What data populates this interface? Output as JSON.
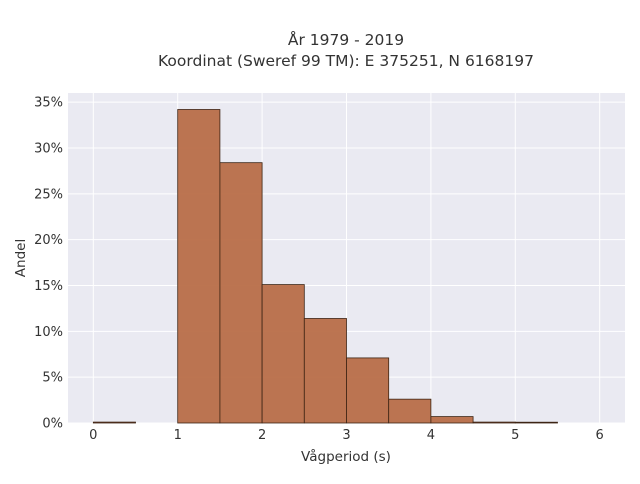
{
  "chart_data": {
    "type": "bar",
    "title": "År 1979 - 2019",
    "subtitle": "Koordinat (Sweref 99 TM): E 375251, N 6168197",
    "xlabel": "Vågperiod (s)",
    "ylabel": "Andel",
    "xlim": [
      -0.3,
      6.3
    ],
    "ylim": [
      0,
      36
    ],
    "x_ticks": [
      0,
      1,
      2,
      3,
      4,
      5,
      6
    ],
    "x_tick_labels": [
      "0",
      "1",
      "2",
      "3",
      "4",
      "5",
      "6"
    ],
    "y_ticks": [
      0,
      5,
      10,
      15,
      20,
      25,
      30,
      35
    ],
    "y_tick_labels": [
      "0%",
      "5%",
      "10%",
      "15%",
      "20%",
      "25%",
      "30%",
      "35%"
    ],
    "grid": true,
    "bar_color": "#b86e48",
    "bar_edge_color": "#3d2414",
    "plot_background": "#eaeaf2",
    "bins": [
      {
        "x0": 0.0,
        "x1": 0.5,
        "value": 0.1
      },
      {
        "x0": 0.5,
        "x1": 1.0,
        "value": 0.0
      },
      {
        "x0": 1.0,
        "x1": 1.5,
        "value": 34.2
      },
      {
        "x0": 1.5,
        "x1": 2.0,
        "value": 28.4
      },
      {
        "x0": 2.0,
        "x1": 2.5,
        "value": 15.1
      },
      {
        "x0": 2.5,
        "x1": 3.0,
        "value": 11.4
      },
      {
        "x0": 3.0,
        "x1": 3.5,
        "value": 7.1
      },
      {
        "x0": 3.5,
        "x1": 4.0,
        "value": 2.6
      },
      {
        "x0": 4.0,
        "x1": 4.5,
        "value": 0.7
      },
      {
        "x0": 4.5,
        "x1": 5.0,
        "value": 0.1
      },
      {
        "x0": 5.0,
        "x1": 5.5,
        "value": 0.05
      }
    ]
  }
}
